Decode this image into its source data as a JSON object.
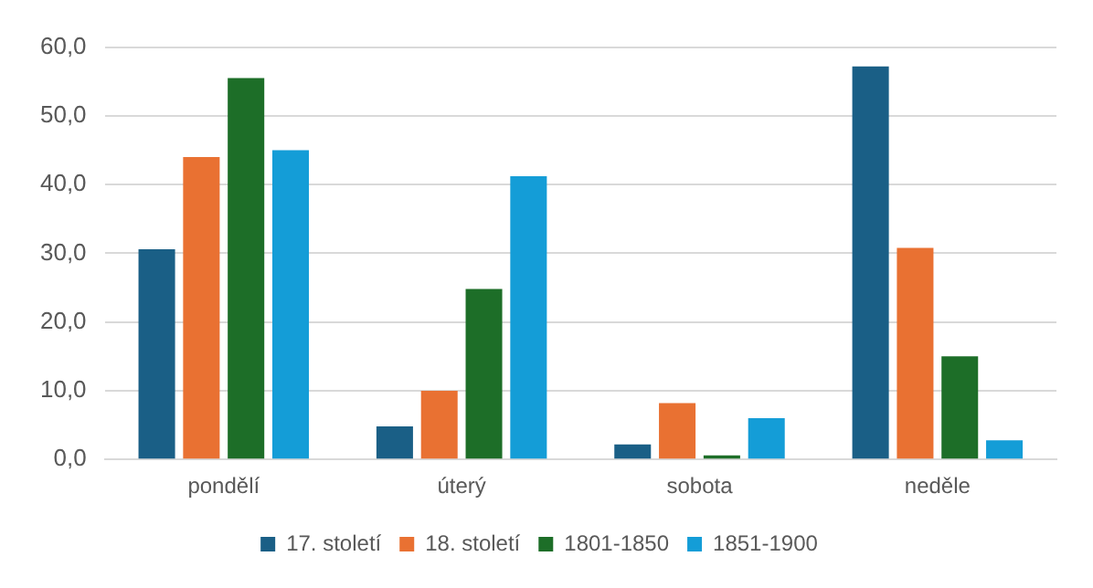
{
  "chart_data": {
    "type": "bar",
    "categories": [
      "pondělí",
      "úterý",
      "sobota",
      "neděle"
    ],
    "series": [
      {
        "name": "17. století",
        "color": "#1a5f86",
        "values": [
          30.6,
          4.8,
          2.2,
          57.2
        ]
      },
      {
        "name": "18. století",
        "color": "#e97132",
        "values": [
          44.0,
          10.0,
          8.2,
          30.8
        ]
      },
      {
        "name": "1801-1850",
        "color": "#1d6e28",
        "values": [
          55.5,
          24.8,
          0.6,
          15.0
        ]
      },
      {
        "name": "1851-1900",
        "color": "#149dd7",
        "values": [
          45.0,
          41.2,
          6.0,
          2.8
        ]
      }
    ],
    "ylim": [
      0,
      60
    ],
    "yticks": [
      {
        "value": 0,
        "label": "0,0"
      },
      {
        "value": 10,
        "label": "10,0"
      },
      {
        "value": 20,
        "label": "20,0"
      },
      {
        "value": 30,
        "label": "30,0"
      },
      {
        "value": 40,
        "label": "40,0"
      },
      {
        "value": 50,
        "label": "50,0"
      },
      {
        "value": 60,
        "label": "60,0"
      }
    ],
    "grid": "y",
    "legend": "bottom"
  }
}
